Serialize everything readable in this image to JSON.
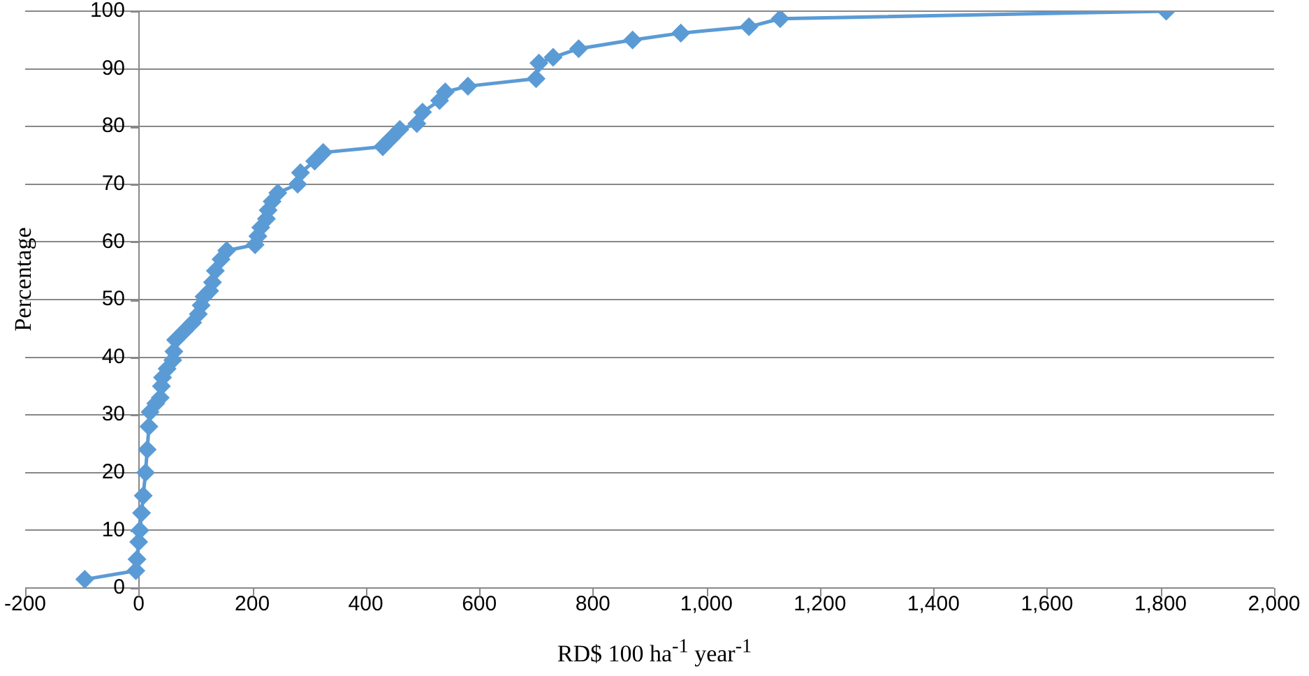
{
  "chart_data": {
    "type": "line",
    "xlabel": "RD$ 100 ha$^{-1}$ year$^{-1}$",
    "ylabel": "Percentage",
    "x": [
      -95,
      -5,
      -3,
      0,
      2,
      5,
      8,
      12,
      15,
      18,
      20,
      30,
      38,
      40,
      42,
      50,
      60,
      62,
      65,
      80,
      95,
      105,
      110,
      115,
      125,
      130,
      135,
      145,
      155,
      205,
      210,
      215,
      225,
      228,
      235,
      245,
      280,
      285,
      310,
      325,
      430,
      445,
      460,
      490,
      500,
      530,
      540,
      580,
      700,
      705,
      730,
      775,
      870,
      955,
      1075,
      1130,
      1810
    ],
    "series": [
      {
        "color": "#5b9bd5",
        "values": [
          1.5,
          3,
          5,
          8,
          10,
          13,
          16,
          20,
          24,
          28,
          30.5,
          32,
          33,
          35,
          36.5,
          38,
          39.5,
          41,
          43,
          44.5,
          46,
          47.5,
          49,
          50.5,
          51.5,
          53,
          55,
          57,
          58.5,
          59.5,
          61,
          62.5,
          64,
          65.5,
          67,
          68.5,
          70,
          72,
          74,
          75.5,
          76.5,
          78,
          79.5,
          80.5,
          82.5,
          84.5,
          86,
          87,
          88.3,
          91,
          92,
          93.5,
          95,
          96.2,
          97.3,
          98.7,
          100
        ]
      }
    ],
    "xlim": [
      -200,
      2000
    ],
    "xticks": [
      -200,
      0,
      200,
      400,
      600,
      800,
      {
        "value": 1000,
        "label": "1,000"
      },
      {
        "value": 1200,
        "label": "1,200"
      },
      {
        "value": 1400,
        "label": "1,400"
      },
      {
        "value": 1600,
        "label": "1,600"
      },
      {
        "value": 1800,
        "label": "1,800"
      },
      {
        "value": 2000,
        "label": "2,000"
      }
    ],
    "ylim": [
      0,
      100
    ],
    "yticks": [
      0,
      10,
      20,
      30,
      40,
      50,
      60,
      70,
      80,
      90,
      100
    ],
    "grid": "y",
    "legend": false,
    "marker": "diamond",
    "line_style": "solid"
  }
}
